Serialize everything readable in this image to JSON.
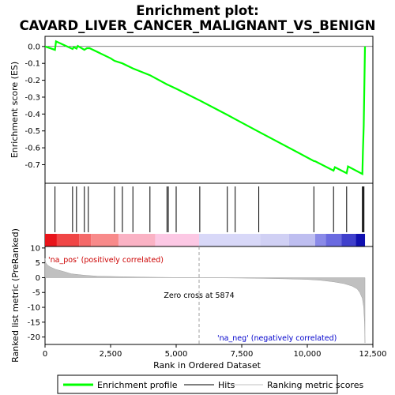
{
  "title_line1": "Enrichment plot:",
  "title_line2": "CAVARD_LIVER_CANCER_MALIGNANT_VS_BENIGN",
  "chart_data": {
    "type": "line",
    "x_label": "Rank in Ordered Dataset",
    "x_ticks": [
      0,
      2500,
      5000,
      7500,
      10000,
      12500
    ],
    "x_tick_labels": [
      "0",
      "2,500",
      "5,000",
      "7,500",
      "10,000",
      "12,500"
    ],
    "xlim": [
      0,
      12500
    ],
    "n_genes": 12200,
    "es_panel": {
      "ylabel": "Enrichment score (ES)",
      "ylim": [
        -0.81,
        0.06
      ],
      "y_ticks": [
        0.0,
        -0.1,
        -0.2,
        -0.3,
        -0.4,
        -0.5,
        -0.6,
        -0.7
      ],
      "y_tick_labels": [
        "0.0",
        "-0.1",
        "-0.2",
        "-0.3",
        "-0.4",
        "-0.5",
        "-0.6",
        "-0.7"
      ],
      "color": "#00ff00",
      "points": [
        [
          0,
          0.0
        ],
        [
          380,
          -0.02
        ],
        [
          420,
          0.03
        ],
        [
          1050,
          -0.015
        ],
        [
          1100,
          -0.003
        ],
        [
          1200,
          -0.013
        ],
        [
          1250,
          0.003
        ],
        [
          1500,
          -0.02
        ],
        [
          1600,
          -0.01
        ],
        [
          1700,
          -0.01
        ],
        [
          2500,
          -0.07
        ],
        [
          2650,
          -0.085
        ],
        [
          2950,
          -0.1
        ],
        [
          3350,
          -0.13
        ],
        [
          4000,
          -0.17
        ],
        [
          4650,
          -0.225
        ],
        [
          4750,
          -0.232
        ],
        [
          5000,
          -0.25
        ],
        [
          5900,
          -0.32
        ],
        [
          6950,
          -0.405
        ],
        [
          7250,
          -0.43
        ],
        [
          8150,
          -0.505
        ],
        [
          10250,
          -0.678
        ],
        [
          10300,
          -0.68
        ],
        [
          11000,
          -0.735
        ],
        [
          11050,
          -0.715
        ],
        [
          11500,
          -0.75
        ],
        [
          11550,
          -0.71
        ],
        [
          12100,
          -0.755
        ],
        [
          12120,
          -0.62
        ],
        [
          12150,
          -0.47
        ],
        [
          12200,
          0.0
        ]
      ]
    },
    "hits": {
      "color": "#000000",
      "positions": [
        380,
        1050,
        1200,
        1500,
        1650,
        2650,
        2950,
        3350,
        4000,
        4650,
        4700,
        5000,
        5900,
        6950,
        7250,
        8150,
        10250,
        11000,
        11500,
        12100,
        12130,
        12160
      ]
    },
    "heatmap_band": {
      "segments": [
        {
          "from": 0,
          "to": 450,
          "color": "#e8141a"
        },
        {
          "from": 450,
          "to": 1300,
          "color": "#f04646"
        },
        {
          "from": 1300,
          "to": 1750,
          "color": "#f46868"
        },
        {
          "from": 1750,
          "to": 2800,
          "color": "#f88a8a"
        },
        {
          "from": 2800,
          "to": 4200,
          "color": "#fab2c4"
        },
        {
          "from": 4200,
          "to": 5874,
          "color": "#fcc8e4"
        },
        {
          "from": 5874,
          "to": 8200,
          "color": "#d8d8f8"
        },
        {
          "from": 8200,
          "to": 9300,
          "color": "#d0d0f4"
        },
        {
          "from": 9300,
          "to": 10300,
          "color": "#bebef0"
        },
        {
          "from": 10300,
          "to": 10700,
          "color": "#8a8ae8"
        },
        {
          "from": 10700,
          "to": 11300,
          "color": "#6a6ae0"
        },
        {
          "from": 11300,
          "to": 11850,
          "color": "#4040cc"
        },
        {
          "from": 11850,
          "to": 12200,
          "color": "#1010b0"
        }
      ]
    },
    "metric_panel": {
      "ylabel": "Ranked list metric (PreRanked)",
      "ylim": [
        -22.5,
        10.5
      ],
      "y_ticks": [
        10,
        5,
        0,
        -5,
        -10,
        -15,
        -20
      ],
      "y_tick_labels": [
        "10",
        "5",
        "0",
        "-5",
        "-10",
        "-15",
        "-20"
      ],
      "fill_color": "#c0c0c0",
      "points": [
        [
          0,
          6.5
        ],
        [
          30,
          5.0
        ],
        [
          100,
          4.2
        ],
        [
          200,
          3.6
        ],
        [
          400,
          2.8
        ],
        [
          700,
          2.1
        ],
        [
          1000,
          1.3
        ],
        [
          1500,
          0.8
        ],
        [
          2000,
          0.5
        ],
        [
          3000,
          0.3
        ],
        [
          4000,
          0.15
        ],
        [
          5000,
          0.05
        ],
        [
          5874,
          0.0
        ],
        [
          7000,
          -0.1
        ],
        [
          8000,
          -0.2
        ],
        [
          9000,
          -0.35
        ],
        [
          10000,
          -0.6
        ],
        [
          10500,
          -0.9
        ],
        [
          11000,
          -1.4
        ],
        [
          11400,
          -2.0
        ],
        [
          11700,
          -2.8
        ],
        [
          11900,
          -3.8
        ],
        [
          12000,
          -5.0
        ],
        [
          12100,
          -7.0
        ],
        [
          12150,
          -10.0
        ],
        [
          12180,
          -15.0
        ],
        [
          12200,
          -22.0
        ]
      ],
      "zero_cross_rank": 5874,
      "zero_cross_text": "Zero cross at 5874",
      "pos_label": "'na_pos' (positively correlated)",
      "neg_label": "'na_neg' (negatively correlated)",
      "pos_color": "#cc0000",
      "neg_color": "#0000cc"
    },
    "legend": [
      {
        "label": "Enrichment profile",
        "color": "#00ff00",
        "kind": "thick-line"
      },
      {
        "label": "Hits",
        "color": "#000000",
        "kind": "line"
      },
      {
        "label": "Ranking metric scores",
        "color": "#c0c0c0",
        "kind": "line"
      }
    ]
  }
}
